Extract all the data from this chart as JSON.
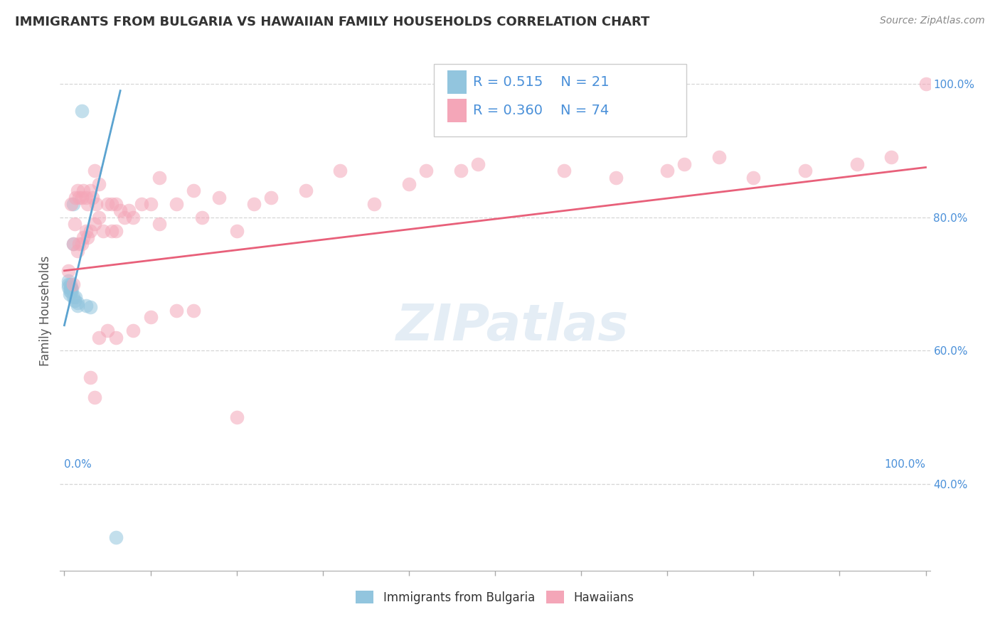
{
  "title": "IMMIGRANTS FROM BULGARIA VS HAWAIIAN FAMILY HOUSEHOLDS CORRELATION CHART",
  "source": "Source: ZipAtlas.com",
  "ylabel": "Family Households",
  "right_yticks": [
    "100.0%",
    "80.0%",
    "60.0%",
    "40.0%"
  ],
  "right_ytick_vals": [
    1.0,
    0.8,
    0.6,
    0.4
  ],
  "legend_r1": "R = 0.515",
  "legend_n1": "N = 21",
  "legend_r2": "R = 0.360",
  "legend_n2": "N = 74",
  "color_blue": "#92c5de",
  "color_pink": "#f4a6b8",
  "color_blue_line": "#5ba3d0",
  "color_pink_line": "#e8607a",
  "color_title": "#333333",
  "color_source": "#888888",
  "color_right_axis": "#4a90d9",
  "color_xlabel": "#4a90d9",
  "watermark_text": "ZIPatlas",
  "legend_label_blue": "Immigrants from Bulgaria",
  "legend_label_pink": "Hawaiians",
  "blue_scatter_x": [
    0.005,
    0.005,
    0.005,
    0.006,
    0.006,
    0.007,
    0.007,
    0.008,
    0.008,
    0.009,
    0.01,
    0.01,
    0.01,
    0.012,
    0.013,
    0.015,
    0.015,
    0.02,
    0.03,
    0.06,
    0.025
  ],
  "blue_scatter_y": [
    0.695,
    0.7,
    0.705,
    0.69,
    0.685,
    0.693,
    0.7,
    0.688,
    0.695,
    0.692,
    0.68,
    0.76,
    0.82,
    0.675,
    0.68,
    0.672,
    0.668,
    0.96,
    0.665,
    0.32,
    0.668
  ],
  "pink_scatter_x": [
    0.005,
    0.008,
    0.01,
    0.01,
    0.012,
    0.013,
    0.015,
    0.015,
    0.017,
    0.017,
    0.02,
    0.02,
    0.022,
    0.022,
    0.025,
    0.025,
    0.027,
    0.027,
    0.03,
    0.03,
    0.033,
    0.035,
    0.035,
    0.037,
    0.04,
    0.04,
    0.045,
    0.05,
    0.055,
    0.055,
    0.06,
    0.06,
    0.065,
    0.07,
    0.075,
    0.08,
    0.09,
    0.1,
    0.11,
    0.11,
    0.13,
    0.15,
    0.16,
    0.18,
    0.2,
    0.22,
    0.24,
    0.28,
    0.32,
    0.36,
    0.4,
    0.42,
    0.46,
    0.48,
    0.58,
    0.64,
    0.7,
    0.72,
    0.76,
    0.8,
    0.86,
    0.92,
    0.96,
    1.0,
    0.03,
    0.035,
    0.04,
    0.05,
    0.06,
    0.08,
    0.1,
    0.13,
    0.15,
    0.2
  ],
  "pink_scatter_y": [
    0.72,
    0.82,
    0.76,
    0.7,
    0.79,
    0.83,
    0.84,
    0.75,
    0.83,
    0.76,
    0.83,
    0.76,
    0.84,
    0.77,
    0.83,
    0.78,
    0.82,
    0.77,
    0.84,
    0.78,
    0.83,
    0.87,
    0.79,
    0.82,
    0.85,
    0.8,
    0.78,
    0.82,
    0.82,
    0.78,
    0.82,
    0.78,
    0.81,
    0.8,
    0.81,
    0.8,
    0.82,
    0.82,
    0.86,
    0.79,
    0.82,
    0.84,
    0.8,
    0.83,
    0.78,
    0.82,
    0.83,
    0.84,
    0.87,
    0.82,
    0.85,
    0.87,
    0.87,
    0.88,
    0.87,
    0.86,
    0.87,
    0.88,
    0.89,
    0.86,
    0.87,
    0.88,
    0.89,
    1.0,
    0.56,
    0.53,
    0.62,
    0.63,
    0.62,
    0.63,
    0.65,
    0.66,
    0.66,
    0.5
  ],
  "blue_trendline_x": [
    0.0,
    0.065
  ],
  "blue_trendline_y": [
    0.638,
    0.99
  ],
  "pink_trendline_x": [
    0.0,
    1.0
  ],
  "pink_trendline_y": [
    0.72,
    0.875
  ],
  "xlim": [
    -0.005,
    1.005
  ],
  "ylim": [
    0.27,
    1.05
  ],
  "xtick_positions": [
    0.0,
    0.1,
    0.2,
    0.3,
    0.4,
    0.5,
    0.6,
    0.7,
    0.8,
    0.9,
    1.0
  ]
}
